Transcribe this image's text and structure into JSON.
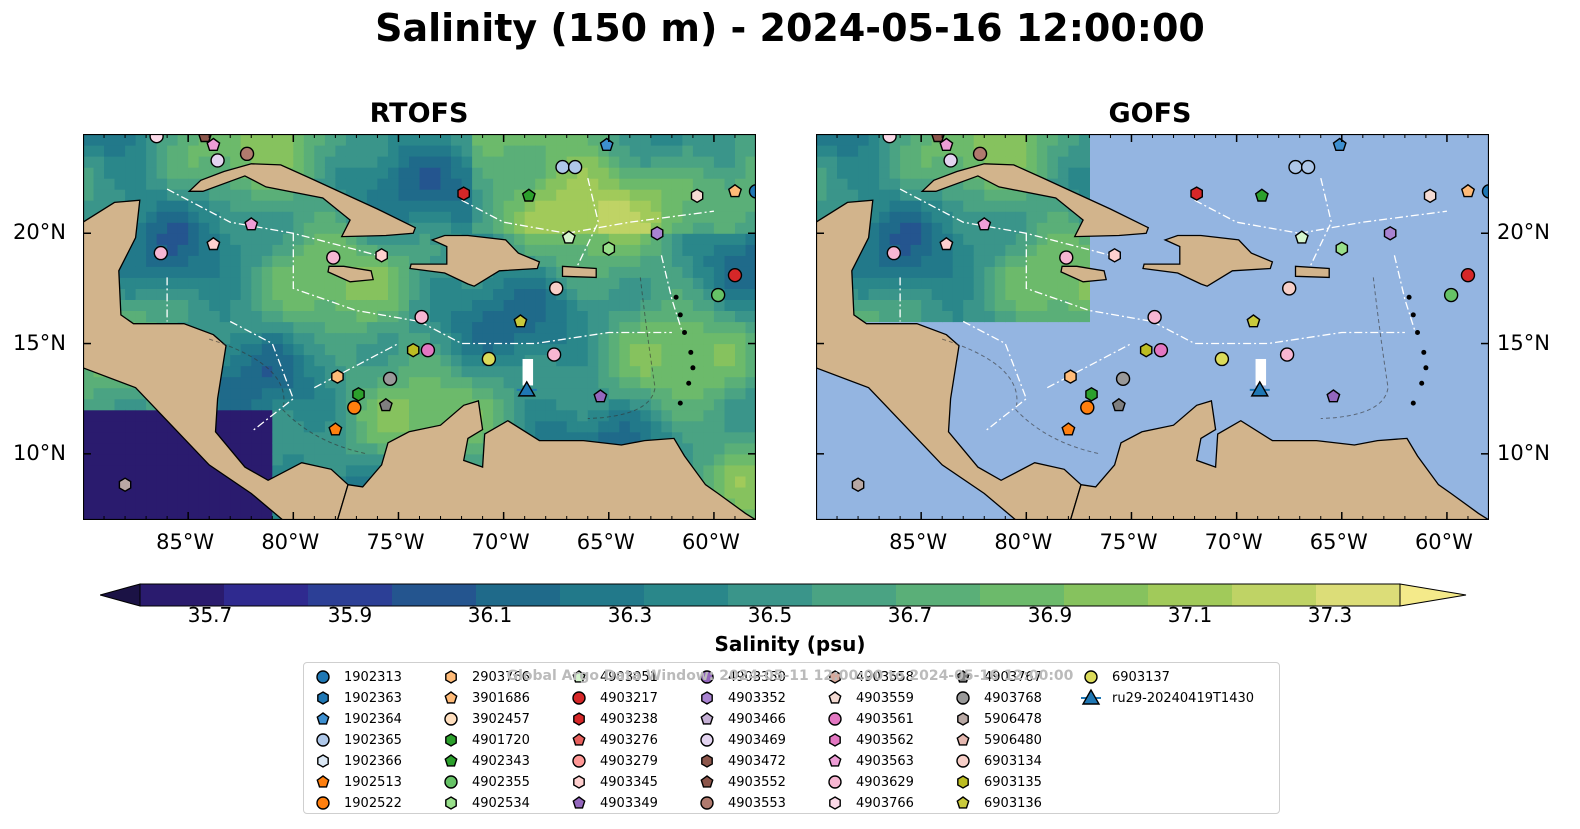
{
  "title": "Salinity (150 m) - 2024-05-16 12:00:00",
  "panels": [
    {
      "title": "RTOFS"
    },
    {
      "title": "GOFS"
    }
  ],
  "axes": {
    "lon_ticks": [
      "85°W",
      "80°W",
      "75°W",
      "70°W",
      "65°W",
      "60°W"
    ],
    "lat_ticks": [
      "20°N",
      "15°N",
      "10°N"
    ],
    "lon_range": [
      -90,
      -58
    ],
    "lat_range": [
      7,
      24.5
    ]
  },
  "colorbar": {
    "label": "Salinity (psu)",
    "min": 35.6,
    "max": 37.4,
    "ticks": [
      "35.7",
      "35.9",
      "36.1",
      "36.3",
      "36.5",
      "36.7",
      "36.9",
      "37.1",
      "37.3"
    ],
    "colors": [
      "#2a1b6e",
      "#2f2a8f",
      "#2c3f96",
      "#24558f",
      "#1f6a8a",
      "#22798a",
      "#2a878a",
      "#3a958a",
      "#4aa383",
      "#5aaf78",
      "#6cba6b",
      "#86c25e",
      "#a1ca5a",
      "#bfd365",
      "#dcdd78"
    ],
    "extend": "both"
  },
  "legend": {
    "watermark": "Global Argo Data Window: 2024-05-11 12:00:00 to 2024-05-16 12:00:00",
    "entries": [
      {
        "label": "1902313",
        "shape": "circle",
        "color": "#1f77b4"
      },
      {
        "label": "1902363",
        "shape": "hexagon",
        "color": "#1f77b4"
      },
      {
        "label": "1902364",
        "shape": "pentagon",
        "color": "#3d8fd0"
      },
      {
        "label": "1902365",
        "shape": "circle",
        "color": "#aec7e8"
      },
      {
        "label": "1902366",
        "shape": "hexagon",
        "color": "#dbe8f5"
      },
      {
        "label": "1902513",
        "shape": "pentagon",
        "color": "#ff7f0e"
      },
      {
        "label": "1902522",
        "shape": "circle",
        "color": "#ff7f0e"
      },
      {
        "label": "2903766",
        "shape": "hexagon",
        "color": "#ffbb78"
      },
      {
        "label": "3901686",
        "shape": "pentagon",
        "color": "#ffbb78"
      },
      {
        "label": "3902457",
        "shape": "circle",
        "color": "#ffdfbf"
      },
      {
        "label": "4901720",
        "shape": "hexagon",
        "color": "#2ca02c"
      },
      {
        "label": "4902343",
        "shape": "pentagon",
        "color": "#2ca02c"
      },
      {
        "label": "4902355",
        "shape": "circle",
        "color": "#66c266"
      },
      {
        "label": "4902534",
        "shape": "hexagon",
        "color": "#98df8a"
      },
      {
        "label": "4903051",
        "shape": "pentagon",
        "color": "#d5f5ce"
      },
      {
        "label": "4903217",
        "shape": "circle",
        "color": "#d62728"
      },
      {
        "label": "4903238",
        "shape": "hexagon",
        "color": "#d62728"
      },
      {
        "label": "4903276",
        "shape": "pentagon",
        "color": "#e8605d"
      },
      {
        "label": "4903279",
        "shape": "circle",
        "color": "#ff9896"
      },
      {
        "label": "4903345",
        "shape": "hexagon",
        "color": "#ffd0cf"
      },
      {
        "label": "4903349",
        "shape": "pentagon",
        "color": "#9467bd"
      },
      {
        "label": "4903350",
        "shape": "circle",
        "color": "#9467bd"
      },
      {
        "label": "4903352",
        "shape": "hexagon",
        "color": "#a983d1"
      },
      {
        "label": "4903466",
        "shape": "pentagon",
        "color": "#c5b0d5"
      },
      {
        "label": "4903469",
        "shape": "circle",
        "color": "#e3d4f0"
      },
      {
        "label": "4903472",
        "shape": "hexagon",
        "color": "#8c564b"
      },
      {
        "label": "4903552",
        "shape": "pentagon",
        "color": "#8c564b"
      },
      {
        "label": "4903553",
        "shape": "circle",
        "color": "#b07a6e"
      },
      {
        "label": "4903558",
        "shape": "hexagon",
        "color": "#d6a99c"
      },
      {
        "label": "4903559",
        "shape": "pentagon",
        "color": "#f4dbd3"
      },
      {
        "label": "4903561",
        "shape": "circle",
        "color": "#e377c2"
      },
      {
        "label": "4903562",
        "shape": "hexagon",
        "color": "#e377c2"
      },
      {
        "label": "4903563",
        "shape": "pentagon",
        "color": "#ee9dd6"
      },
      {
        "label": "4903629",
        "shape": "circle",
        "color": "#f7b6d2"
      },
      {
        "label": "4903766",
        "shape": "hexagon",
        "color": "#fbd9e8"
      },
      {
        "label": "4903767",
        "shape": "pentagon",
        "color": "#7f7f7f"
      },
      {
        "label": "4903768",
        "shape": "circle",
        "color": "#999999"
      },
      {
        "label": "5906478",
        "shape": "hexagon",
        "color": "#b8a8a4"
      },
      {
        "label": "5906480",
        "shape": "pentagon",
        "color": "#e5b8b0"
      },
      {
        "label": "6903134",
        "shape": "circle",
        "color": "#f7cfc8"
      },
      {
        "label": "6903135",
        "shape": "hexagon",
        "color": "#bcbd22"
      },
      {
        "label": "6903136",
        "shape": "pentagon",
        "color": "#c9ca3c"
      },
      {
        "label": "6903137",
        "shape": "circle",
        "color": "#dbdb5a"
      },
      {
        "label": "ru29-20240419T1430",
        "shape": "glider",
        "color": "#1f77b4"
      }
    ]
  },
  "floats": [
    {
      "lon": -86.5,
      "lat": 24.4,
      "color": "#fbd9e8",
      "shape": "circle"
    },
    {
      "lon": -84.2,
      "lat": 24.4,
      "color": "#8c564b",
      "shape": "pentagon"
    },
    {
      "lon": -83.8,
      "lat": 24.0,
      "color": "#ee9dd6",
      "shape": "pentagon"
    },
    {
      "lon": -83.6,
      "lat": 23.3,
      "color": "#e3d4f0",
      "shape": "circle"
    },
    {
      "lon": -82.2,
      "lat": 23.6,
      "color": "#b07a6e",
      "shape": "circle"
    },
    {
      "lon": -86.3,
      "lat": 19.1,
      "color": "#f7b6d2",
      "shape": "circle"
    },
    {
      "lon": -83.8,
      "lat": 19.5,
      "color": "#ffd0cf",
      "shape": "pentagon"
    },
    {
      "lon": -82.0,
      "lat": 20.4,
      "color": "#ee9dd6",
      "shape": "pentagon"
    },
    {
      "lon": -78.1,
      "lat": 18.9,
      "color": "#f7b6d2",
      "shape": "circle"
    },
    {
      "lon": -75.8,
      "lat": 19.0,
      "color": "#ffd0cf",
      "shape": "hexagon"
    },
    {
      "lon": -73.9,
      "lat": 16.2,
      "color": "#f7b6d2",
      "shape": "circle"
    },
    {
      "lon": -74.3,
      "lat": 14.7,
      "color": "#bcbd22",
      "shape": "hexagon"
    },
    {
      "lon": -73.6,
      "lat": 14.7,
      "color": "#e377c2",
      "shape": "circle"
    },
    {
      "lon": -77.9,
      "lat": 13.5,
      "color": "#ffbb78",
      "shape": "hexagon"
    },
    {
      "lon": -76.9,
      "lat": 12.7,
      "color": "#2ca02c",
      "shape": "hexagon"
    },
    {
      "lon": -77.1,
      "lat": 12.1,
      "color": "#ff7f0e",
      "shape": "circle"
    },
    {
      "lon": -75.4,
      "lat": 13.4,
      "color": "#999999",
      "shape": "circle"
    },
    {
      "lon": -75.6,
      "lat": 12.2,
      "color": "#7f7f7f",
      "shape": "pentagon"
    },
    {
      "lon": -78.0,
      "lat": 11.1,
      "color": "#ff7f0e",
      "shape": "pentagon"
    },
    {
      "lon": -88.0,
      "lat": 8.6,
      "color": "#b8a8a4",
      "shape": "hexagon"
    },
    {
      "lon": -71.9,
      "lat": 21.8,
      "color": "#d62728",
      "shape": "hexagon"
    },
    {
      "lon": -68.8,
      "lat": 21.7,
      "color": "#2ca02c",
      "shape": "pentagon"
    },
    {
      "lon": -67.2,
      "lat": 23.0,
      "color": "#aec7e8",
      "shape": "circle"
    },
    {
      "lon": -66.6,
      "lat": 23.0,
      "color": "#aec7e8",
      "shape": "circle"
    },
    {
      "lon": -65.1,
      "lat": 24.0,
      "color": "#3d8fd0",
      "shape": "pentagon"
    },
    {
      "lon": -66.9,
      "lat": 19.8,
      "color": "#d5f5ce",
      "shape": "pentagon"
    },
    {
      "lon": -65.0,
      "lat": 19.3,
      "color": "#98df8a",
      "shape": "hexagon"
    },
    {
      "lon": -62.7,
      "lat": 20.0,
      "color": "#a983d1",
      "shape": "hexagon"
    },
    {
      "lon": -67.5,
      "lat": 17.5,
      "color": "#f7cfc8",
      "shape": "circle"
    },
    {
      "lon": -69.2,
      "lat": 16.0,
      "color": "#c9ca3c",
      "shape": "pentagon"
    },
    {
      "lon": -70.7,
      "lat": 14.3,
      "color": "#dbdb5a",
      "shape": "circle"
    },
    {
      "lon": -67.6,
      "lat": 14.5,
      "color": "#f7b6d2",
      "shape": "circle"
    },
    {
      "lon": -65.4,
      "lat": 12.6,
      "color": "#9467bd",
      "shape": "pentagon"
    },
    {
      "lon": -60.8,
      "lat": 21.7,
      "color": "#f4dbd3",
      "shape": "hexagon"
    },
    {
      "lon": -59.0,
      "lat": 21.9,
      "color": "#ffbb78",
      "shape": "pentagon"
    },
    {
      "lon": -58.0,
      "lat": 21.9,
      "color": "#1f77b4",
      "shape": "circle"
    },
    {
      "lon": -59.0,
      "lat": 18.1,
      "color": "#d62728",
      "shape": "circle"
    },
    {
      "lon": -59.8,
      "lat": 17.2,
      "color": "#66c266",
      "shape": "circle"
    }
  ],
  "glider": {
    "lon": -68.9,
    "lat": 12.9,
    "color": "#1f77b4"
  }
}
